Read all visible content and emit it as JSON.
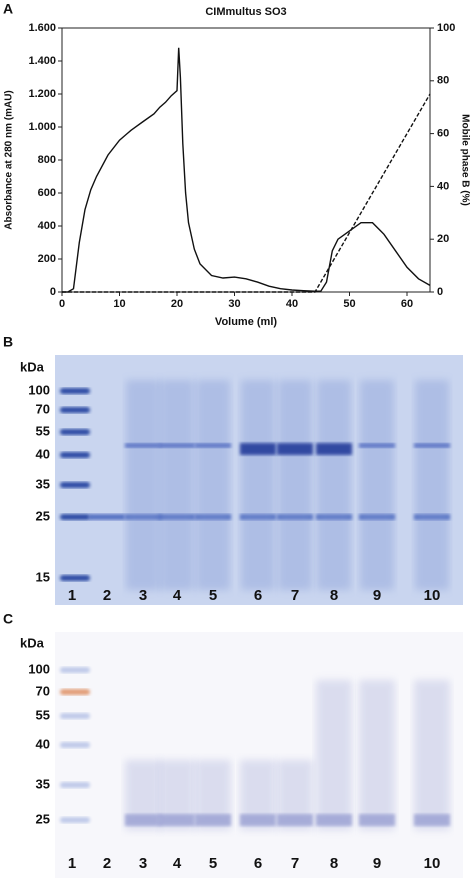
{
  "chart_data": {
    "type": "line",
    "panel_label": "A",
    "title": "CIMmultus SO3",
    "x_label": "Volume (ml)",
    "y_label": "Absorbance at 280 nm (mAU)",
    "y2_label": "Mobile phase B (%)",
    "xlim": [
      0,
      64
    ],
    "xticks": [
      0,
      10,
      20,
      30,
      40,
      50,
      60
    ],
    "ylim": [
      0,
      1600
    ],
    "yticks": [
      0,
      200,
      400,
      600,
      800,
      {
        "value": 1000,
        "label": "1.000"
      },
      {
        "value": 1200,
        "label": "1.200"
      },
      {
        "value": 1400,
        "label": "1.400"
      },
      {
        "value": 1600,
        "label": "1.600"
      }
    ],
    "y2lim": [
      0,
      100
    ],
    "y2ticks": [
      0,
      20,
      40,
      60,
      80,
      100
    ],
    "series": [
      {
        "color": "#111111",
        "style": "solid",
        "x": [
          0,
          1,
          2,
          3,
          4,
          5,
          6,
          8,
          10,
          12,
          14,
          16,
          17,
          18,
          19,
          20,
          20.3,
          20.6,
          21,
          21.5,
          22,
          23,
          24,
          26,
          28,
          30,
          32,
          34,
          36,
          38,
          40,
          42,
          44,
          45,
          46,
          47,
          48,
          50,
          52,
          54,
          56,
          58,
          60,
          62,
          64
        ],
        "values": [
          0,
          0,
          20,
          300,
          500,
          620,
          700,
          830,
          920,
          980,
          1030,
          1080,
          1120,
          1150,
          1190,
          1220,
          1480,
          1300,
          900,
          600,
          420,
          260,
          170,
          100,
          85,
          90,
          80,
          60,
          35,
          20,
          12,
          8,
          5,
          5,
          60,
          250,
          320,
          370,
          420,
          420,
          350,
          250,
          150,
          80,
          40
        ]
      },
      {
        "color": "#111111",
        "style": "dashed",
        "axis": "y2",
        "x": [
          0,
          44,
          64
        ],
        "values": [
          0,
          0,
          75
        ]
      }
    ]
  },
  "gel_b": {
    "panel_label": "B",
    "unit": "kDa",
    "markers": [
      "100",
      "70",
      "55",
      "40",
      "35",
      "25",
      "15"
    ],
    "lanes": [
      "1",
      "2",
      "3",
      "4",
      "5",
      "6",
      "7",
      "8",
      "9",
      "10"
    ]
  },
  "gel_c": {
    "panel_label": "C",
    "unit": "kDa",
    "markers": [
      "100",
      "70",
      "55",
      "40",
      "35",
      "25"
    ],
    "lanes": [
      "1",
      "2",
      "3",
      "4",
      "5",
      "6",
      "7",
      "8",
      "9",
      "10"
    ]
  }
}
